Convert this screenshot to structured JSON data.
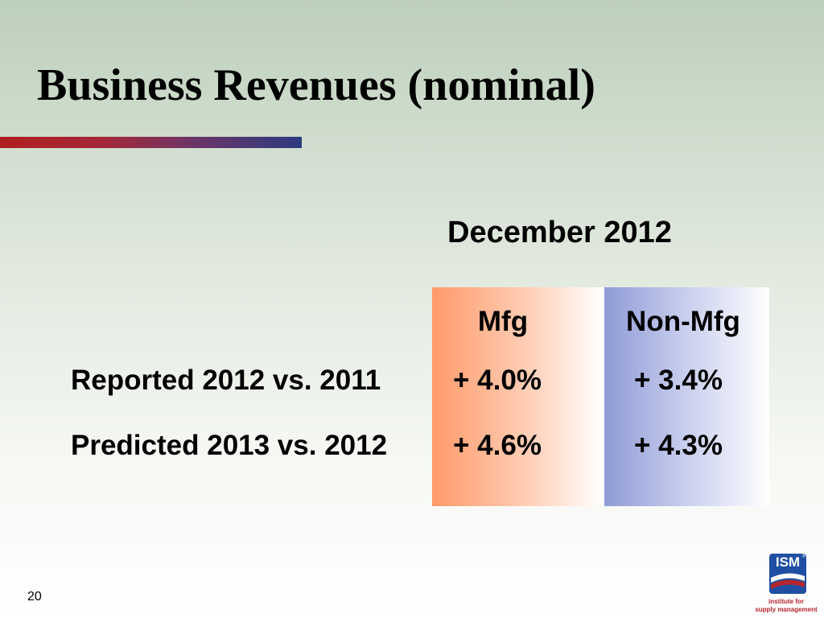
{
  "slide": {
    "title": "Business Revenues (nominal)",
    "period": "December 2012",
    "slide_number": "20"
  },
  "table": {
    "columns": [
      "Mfg",
      "Non-Mfg"
    ],
    "rows": [
      {
        "label": "Reported 2012 vs. 2011",
        "values": [
          "+ 4.0%",
          "+ 3.4%"
        ]
      },
      {
        "label": "Predicted 2013 vs. 2012",
        "values": [
          "+ 4.6%",
          "+ 4.3%"
        ]
      }
    ]
  },
  "colors": {
    "mfg_column": "#ff9a6b",
    "nonmfg_column": "#8f9bd6",
    "title_rule_start": "#b01f1f",
    "title_rule_end": "#2c3b80",
    "logo_blue": "#1f4fa3",
    "logo_red": "#b3262e"
  },
  "logo": {
    "mark": "ISM",
    "registered": "®",
    "caption_line_1": "institute for",
    "caption_line_2": "supply management"
  }
}
